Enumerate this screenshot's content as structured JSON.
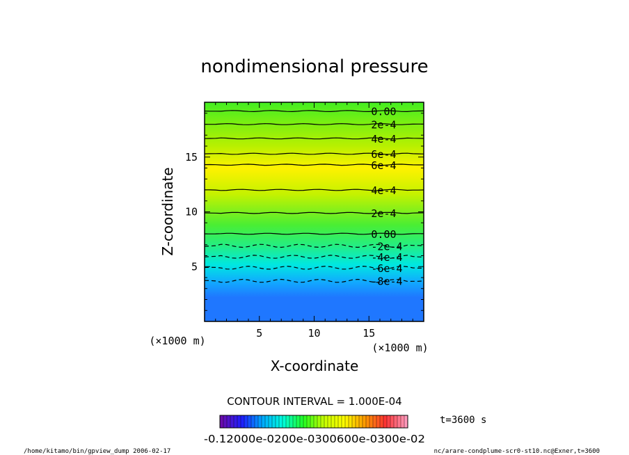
{
  "chart_data": {
    "type": "heatmap",
    "title": "nondimensional pressure",
    "xlabel": "X-coordinate",
    "ylabel": "Z-coordinate",
    "x_unit": "(×1000 m)",
    "y_unit": "(×1000 m)",
    "xlim": [
      0,
      20
    ],
    "ylim": [
      0,
      20
    ],
    "xticks": [
      5,
      10,
      15
    ],
    "yticks": [
      5,
      10,
      15
    ],
    "contour_interval": "CONTOUR INTERVAL = 1.000E-04",
    "contour_levels": [
      {
        "z": 19.2,
        "label": "0.00",
        "style": "solid"
      },
      {
        "z": 18.0,
        "label": "2e-4",
        "style": "solid"
      },
      {
        "z": 16.7,
        "label": "4e-4",
        "style": "solid"
      },
      {
        "z": 15.3,
        "label": "6e-4",
        "style": "solid"
      },
      {
        "z": 14.3,
        "label": "6e-4",
        "style": "solid"
      },
      {
        "z": 12.0,
        "label": "4e-4",
        "style": "solid"
      },
      {
        "z": 9.9,
        "label": "2e-4",
        "style": "solid"
      },
      {
        "z": 8.0,
        "label": "0.00",
        "style": "solid"
      },
      {
        "z": 6.9,
        "label": "-2e-4",
        "style": "dashed"
      },
      {
        "z": 5.9,
        "label": "-4e-4",
        "style": "dashed"
      },
      {
        "z": 4.9,
        "label": "-6e-4",
        "style": "dashed"
      },
      {
        "z": 3.7,
        "label": "-8e-4",
        "style": "dashed"
      }
    ],
    "colorbar": {
      "min_label": "-0.12000E-02",
      "labels_text": "-0.12000e-0200e-0300600e-0300e-02",
      "colors": [
        "#6a0dad",
        "#1e1eff",
        "#00aaff",
        "#00ffdd",
        "#22ff22",
        "#c8ff00",
        "#ffff00",
        "#ff9900",
        "#ff3333",
        "#ff99bb"
      ]
    },
    "time_label": "t=3600 s",
    "footer_left": "/home/kitamo/bin/gpview_dump  2006-02-17",
    "footer_right": "nc/arare-condplume-scr0-st10.nc@Exner,t=3600"
  }
}
